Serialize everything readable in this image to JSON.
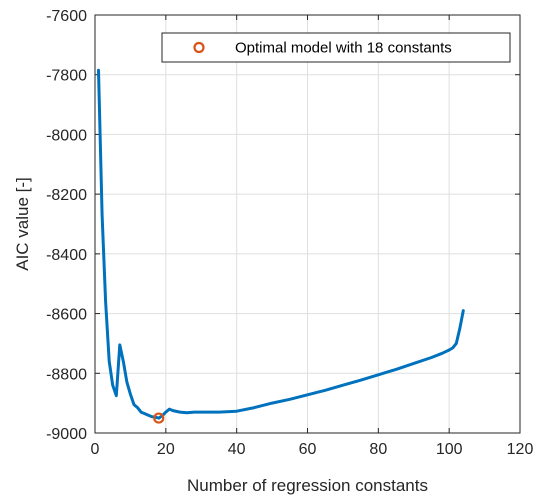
{
  "chart_data": {
    "type": "line",
    "title": "",
    "xlabel": "Number of regression constants",
    "ylabel": "AIC value [-]",
    "xlim": [
      0,
      120
    ],
    "ylim": [
      -9000,
      -7600
    ],
    "xticks": [
      0,
      20,
      40,
      60,
      80,
      100,
      120
    ],
    "yticks": [
      -9000,
      -8800,
      -8600,
      -8400,
      -8200,
      -8000,
      -7800,
      -7600
    ],
    "xtick_labels": [
      "0",
      "20",
      "40",
      "60",
      "80",
      "100",
      "120"
    ],
    "ytick_labels": [
      "-9000",
      "-8800",
      "-8600",
      "-8400",
      "-8200",
      "-8000",
      "-7800",
      "-7600"
    ],
    "grid": true,
    "legend_position": "top-right",
    "series": [
      {
        "color": "#0072BD",
        "x": [
          1,
          2,
          3,
          4,
          5,
          6,
          7,
          8,
          9,
          10,
          11,
          12,
          13,
          14,
          15,
          16,
          17,
          18,
          19,
          20,
          21,
          22,
          24,
          26,
          28,
          30,
          35,
          40,
          45,
          50,
          55,
          60,
          65,
          70,
          75,
          80,
          85,
          90,
          95,
          98,
          100,
          101,
          102,
          103,
          104
        ],
        "y": [
          -7785,
          -8270,
          -8560,
          -8760,
          -8840,
          -8875,
          -8705,
          -8760,
          -8830,
          -8870,
          -8905,
          -8915,
          -8930,
          -8935,
          -8940,
          -8945,
          -8947,
          -8950,
          -8942,
          -8930,
          -8920,
          -8925,
          -8930,
          -8932,
          -8930,
          -8930,
          -8930,
          -8927,
          -8915,
          -8900,
          -8887,
          -8872,
          -8857,
          -8840,
          -8823,
          -8805,
          -8787,
          -8767,
          -8747,
          -8733,
          -8722,
          -8715,
          -8700,
          -8650,
          -8590
        ]
      }
    ],
    "markers": [
      {
        "name": "Optimal model with 18 constants",
        "x": 18,
        "y": -8950,
        "color": "#D95319"
      }
    ]
  }
}
